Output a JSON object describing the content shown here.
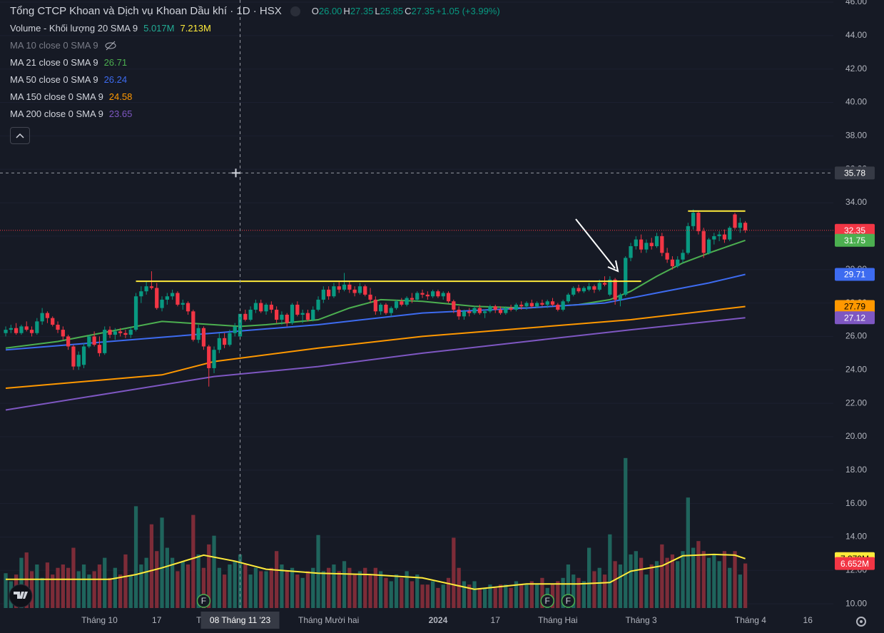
{
  "chart_data": {
    "type": "candlestick",
    "title": "Tổng CTCP Khoan và Dịch vụ Khoan Dầu khí · 1D · HSX",
    "ohlc_legend": [
      {
        "key": "O",
        "value": "26.00"
      },
      {
        "key": "H",
        "value": "27.35"
      },
      {
        "key": "L",
        "value": "25.85"
      },
      {
        "key": "C",
        "value": "27.35"
      }
    ],
    "change": "+1.05 (+3.99%)",
    "up_color": "#089981",
    "down_color": "#f23645",
    "volume_up_color": "#1f645c",
    "volume_down_color": "#7d2c38",
    "xlim": [
      -1.1,
      158.9
    ],
    "ylim": [
      9.75,
      46.13
    ],
    "y2lim": [
      0,
      90.8
    ],
    "grid": true,
    "yticks": [
      {
        "value": 10,
        "label": "10.00"
      },
      {
        "value": 12,
        "label": "12.00"
      },
      {
        "value": 14,
        "label": "14.00"
      },
      {
        "value": 16,
        "label": "16.00"
      },
      {
        "value": 18,
        "label": "18.00"
      },
      {
        "value": 20,
        "label": "20.00"
      },
      {
        "value": 22,
        "label": "22.00"
      },
      {
        "value": 24,
        "label": "24.00"
      },
      {
        "value": 26,
        "label": "26.00"
      },
      {
        "value": 28,
        "label": "28.00"
      },
      {
        "value": 30,
        "label": "30.00"
      },
      {
        "value": 32,
        "label": "32.00"
      },
      {
        "value": 34,
        "label": "34.00"
      },
      {
        "value": 36,
        "label": "36.00"
      },
      {
        "value": 38,
        "label": "38.00"
      },
      {
        "value": 40,
        "label": "40.00"
      },
      {
        "value": 42,
        "label": "42.00"
      },
      {
        "value": 44,
        "label": "44.00"
      },
      {
        "value": 46,
        "label": "46.00"
      }
    ],
    "xticks": [
      {
        "value": 18,
        "label": "Tháng 10"
      },
      {
        "value": 29,
        "label": "17"
      },
      {
        "value": 40,
        "label": "Tháng 11"
      },
      {
        "value": 62,
        "label": "Tháng Mười hai"
      },
      {
        "value": 83,
        "label": "2024"
      },
      {
        "value": 94,
        "label": "17"
      },
      {
        "value": 106,
        "label": "Tháng Hai"
      },
      {
        "value": 122,
        "label": "Tháng 3"
      },
      {
        "value": 143,
        "label": "Tháng 4"
      },
      {
        "value": 154,
        "label": "16"
      }
    ],
    "candles": [
      [
        26.2,
        26.6,
        26.0,
        26.4
      ],
      [
        26.4,
        26.7,
        26.2,
        26.5
      ],
      [
        26.5,
        26.8,
        26.1,
        26.2
      ],
      [
        26.2,
        26.7,
        26.1,
        26.6
      ],
      [
        26.6,
        26.9,
        26.3,
        26.4
      ],
      [
        26.4,
        26.6,
        26.0,
        26.2
      ],
      [
        26.2,
        27.1,
        26.1,
        26.9
      ],
      [
        26.9,
        27.7,
        26.7,
        27.4
      ],
      [
        27.4,
        27.5,
        26.8,
        27.1
      ],
      [
        27.1,
        27.2,
        26.6,
        26.7
      ],
      [
        26.7,
        26.9,
        26.2,
        26.4
      ],
      [
        26.4,
        26.6,
        25.8,
        26.0
      ],
      [
        26.0,
        26.1,
        25.2,
        25.4
      ],
      [
        25.4,
        25.5,
        24.0,
        24.2
      ],
      [
        24.2,
        25.1,
        24.0,
        24.9
      ],
      [
        24.3,
        25.6,
        24.1,
        25.4
      ],
      [
        25.4,
        26.1,
        25.3,
        26.0
      ],
      [
        26.0,
        26.3,
        25.4,
        25.5
      ],
      [
        25.5,
        26.0,
        24.8,
        25.0
      ],
      [
        25.0,
        26.6,
        24.9,
        26.4
      ],
      [
        26.4,
        26.6,
        25.9,
        26.1
      ],
      [
        26.1,
        26.5,
        25.8,
        26.3
      ],
      [
        26.3,
        26.5,
        26.0,
        26.2
      ],
      [
        26.2,
        26.4,
        25.9,
        26.1
      ],
      [
        26.1,
        26.6,
        25.9,
        26.4
      ],
      [
        26.4,
        28.6,
        26.3,
        28.4
      ],
      [
        28.4,
        29.0,
        28.0,
        28.7
      ],
      [
        28.7,
        29.3,
        28.5,
        29.0
      ],
      [
        29.0,
        29.9,
        28.8,
        28.9
      ],
      [
        28.9,
        29.2,
        27.6,
        27.7
      ],
      [
        27.7,
        28.4,
        27.5,
        28.2
      ],
      [
        28.2,
        28.6,
        27.9,
        28.4
      ],
      [
        28.4,
        28.8,
        28.2,
        28.6
      ],
      [
        28.6,
        28.7,
        27.8,
        27.9
      ],
      [
        27.9,
        28.2,
        27.6,
        28.0
      ],
      [
        28.0,
        28.1,
        27.3,
        27.5
      ],
      [
        27.5,
        27.6,
        25.7,
        25.8
      ],
      [
        25.8,
        26.7,
        25.6,
        26.5
      ],
      [
        26.5,
        26.6,
        25.2,
        25.4
      ],
      [
        25.4,
        25.5,
        23.0,
        24.1
      ],
      [
        24.1,
        25.4,
        23.8,
        25.2
      ],
      [
        25.2,
        26.2,
        25.0,
        25.9
      ],
      [
        25.9,
        26.2,
        25.3,
        25.5
      ],
      [
        25.5,
        26.4,
        25.4,
        26.2
      ],
      [
        26.2,
        26.8,
        26.0,
        26.6
      ],
      [
        26.0,
        27.35,
        25.85,
        27.35
      ],
      [
        27.35,
        27.6,
        26.9,
        27.0
      ],
      [
        27.0,
        27.8,
        26.9,
        27.6
      ],
      [
        27.6,
        28.2,
        27.4,
        28.0
      ],
      [
        28.0,
        28.2,
        27.4,
        27.5
      ],
      [
        27.5,
        28.0,
        27.3,
        27.9
      ],
      [
        27.9,
        28.1,
        27.4,
        27.6
      ],
      [
        27.6,
        27.8,
        26.8,
        27.0
      ],
      [
        27.0,
        27.5,
        26.7,
        27.3
      ],
      [
        27.3,
        27.4,
        26.6,
        26.8
      ],
      [
        26.8,
        28.0,
        26.7,
        27.9
      ],
      [
        27.9,
        28.1,
        27.2,
        27.3
      ],
      [
        27.3,
        27.6,
        26.8,
        27.4
      ],
      [
        27.4,
        27.6,
        26.9,
        27.0
      ],
      [
        27.0,
        27.8,
        26.9,
        27.6
      ],
      [
        27.6,
        28.4,
        27.5,
        28.2
      ],
      [
        28.2,
        29.0,
        28.0,
        28.8
      ],
      [
        28.8,
        29.0,
        28.2,
        28.4
      ],
      [
        28.4,
        29.2,
        28.3,
        29.0
      ],
      [
        29.0,
        29.3,
        28.6,
        28.8
      ],
      [
        28.8,
        29.8,
        28.7,
        29.1
      ],
      [
        29.1,
        29.3,
        28.6,
        28.8
      ],
      [
        28.8,
        29.0,
        28.4,
        28.6
      ],
      [
        28.6,
        29.2,
        28.5,
        29.0
      ],
      [
        29.0,
        29.1,
        28.4,
        28.5
      ],
      [
        28.5,
        28.9,
        28.0,
        28.2
      ],
      [
        28.2,
        28.4,
        27.3,
        27.5
      ],
      [
        27.5,
        28.0,
        27.3,
        27.9
      ],
      [
        27.9,
        28.0,
        27.3,
        27.4
      ],
      [
        27.4,
        27.8,
        27.2,
        27.7
      ],
      [
        27.7,
        28.2,
        27.6,
        28.1
      ],
      [
        28.1,
        28.3,
        27.8,
        27.9
      ],
      [
        27.9,
        28.4,
        27.8,
        28.3
      ],
      [
        28.3,
        28.6,
        28.0,
        28.2
      ],
      [
        28.2,
        28.7,
        28.1,
        28.6
      ],
      [
        28.6,
        28.8,
        28.3,
        28.5
      ],
      [
        28.5,
        28.7,
        28.2,
        28.4
      ],
      [
        28.4,
        28.8,
        28.3,
        28.7
      ],
      [
        28.7,
        28.8,
        28.3,
        28.4
      ],
      [
        28.4,
        28.7,
        28.2,
        28.6
      ],
      [
        28.6,
        28.7,
        28.0,
        28.1
      ],
      [
        28.1,
        28.2,
        27.4,
        27.6
      ],
      [
        27.6,
        27.8,
        27.0,
        27.2
      ],
      [
        27.2,
        27.6,
        27.0,
        27.5
      ],
      [
        27.5,
        27.7,
        27.2,
        27.4
      ],
      [
        27.4,
        27.8,
        27.3,
        27.7
      ],
      [
        27.7,
        27.9,
        27.3,
        27.4
      ],
      [
        27.4,
        27.6,
        27.1,
        27.5
      ],
      [
        27.5,
        27.9,
        27.4,
        27.8
      ],
      [
        27.8,
        27.9,
        27.4,
        27.6
      ],
      [
        27.6,
        27.8,
        27.3,
        27.4
      ],
      [
        27.4,
        27.8,
        27.3,
        27.7
      ],
      [
        27.7,
        27.9,
        27.5,
        27.6
      ],
      [
        27.6,
        28.0,
        27.5,
        27.9
      ],
      [
        27.9,
        28.1,
        27.6,
        27.8
      ],
      [
        27.8,
        28.1,
        27.6,
        28.0
      ],
      [
        28.0,
        28.2,
        27.7,
        27.8
      ],
      [
        27.8,
        28.1,
        27.7,
        28.0
      ],
      [
        28.0,
        28.2,
        27.8,
        27.9
      ],
      [
        27.9,
        28.2,
        27.7,
        28.1
      ],
      [
        28.1,
        28.3,
        27.8,
        27.9
      ],
      [
        27.9,
        28.0,
        27.5,
        27.6
      ],
      [
        27.6,
        28.2,
        27.5,
        28.1
      ],
      [
        28.1,
        28.6,
        28.0,
        28.5
      ],
      [
        28.5,
        29.0,
        28.4,
        28.9
      ],
      [
        28.9,
        29.1,
        28.6,
        28.7
      ],
      [
        28.7,
        29.0,
        28.6,
        28.9
      ],
      [
        28.8,
        29.2,
        28.7,
        29.0
      ],
      [
        29.0,
        29.1,
        28.6,
        28.8
      ],
      [
        28.8,
        29.4,
        28.7,
        29.2
      ],
      [
        29.2,
        29.6,
        29.0,
        29.1
      ],
      [
        28.5,
        29.6,
        28.4,
        29.4
      ],
      [
        29.4,
        29.5,
        27.9,
        28.2
      ],
      [
        28.2,
        28.6,
        27.8,
        28.5
      ],
      [
        28.5,
        30.8,
        28.4,
        30.7
      ],
      [
        30.7,
        31.6,
        30.5,
        31.4
      ],
      [
        31.4,
        32.0,
        31.2,
        31.8
      ],
      [
        31.8,
        32.1,
        31.0,
        31.2
      ],
      [
        31.2,
        31.8,
        31.0,
        31.6
      ],
      [
        31.6,
        31.9,
        31.2,
        31.4
      ],
      [
        31.4,
        32.2,
        31.3,
        32.0
      ],
      [
        32.0,
        32.2,
        30.8,
        31.0
      ],
      [
        31.0,
        31.3,
        30.4,
        30.6
      ],
      [
        30.6,
        30.8,
        30.0,
        30.2
      ],
      [
        30.2,
        30.8,
        30.1,
        30.6
      ],
      [
        30.6,
        31.2,
        30.4,
        31.0
      ],
      [
        31.0,
        32.8,
        30.9,
        32.6
      ],
      [
        32.6,
        33.6,
        32.4,
        33.4
      ],
      [
        33.4,
        33.5,
        32.1,
        32.3
      ],
      [
        32.3,
        32.5,
        30.7,
        31.0
      ],
      [
        31.0,
        31.9,
        30.9,
        31.8
      ],
      [
        31.8,
        32.2,
        31.5,
        32.0
      ],
      [
        32.0,
        32.3,
        31.7,
        32.1
      ],
      [
        32.1,
        32.4,
        31.6,
        31.8
      ],
      [
        31.8,
        32.6,
        31.7,
        32.5
      ],
      [
        33.3,
        33.4,
        32.4,
        32.5
      ],
      [
        32.5,
        33.1,
        32.2,
        32.8
      ],
      [
        32.8,
        32.9,
        32.2,
        32.35
      ]
    ],
    "volume": [
      5.2,
      4.0,
      5.0,
      7.5,
      8.3,
      5.5,
      6.5,
      4.5,
      6.8,
      5.0,
      6.0,
      6.5,
      6.0,
      9.0,
      5.5,
      6.5,
      5.0,
      5.5,
      6.5,
      7.5,
      4.5,
      6.0,
      5.0,
      8.0,
      4.8,
      15.2,
      6.5,
      7.5,
      12.5,
      8.5,
      13.5,
      9.0,
      7.5,
      5.5,
      7.0,
      6.5,
      13.9,
      8.0,
      6.0,
      9.5,
      10.8,
      6.0,
      5.0,
      6.5,
      7.0,
      8.0,
      6.5,
      5.0,
      6.0,
      5.5,
      5.5,
      6.0,
      8.5,
      6.5,
      5.5,
      6.0,
      5.0,
      4.5,
      5.5,
      6.0,
      10.9,
      5.5,
      6.0,
      6.5,
      5.5,
      7.0,
      6.0,
      5.0,
      5.5,
      6.0,
      5.0,
      6.0,
      5.5,
      4.5,
      4.0,
      5.0,
      4.5,
      5.5,
      4.0,
      5.0,
      3.5,
      3.5,
      4.0,
      3.0,
      3.5,
      4.5,
      10.5,
      6.0,
      4.0,
      3.5,
      4.0,
      3.0,
      3.0,
      3.5,
      3.0,
      3.5,
      3.5,
      3.0,
      4.0,
      3.5,
      3.5,
      4.0,
      3.5,
      4.5,
      3.0,
      3.5,
      4.0,
      4.5,
      6.5,
      5.0,
      4.5,
      4.0,
      9.0,
      5.5,
      6.0,
      5.0,
      11.0,
      7.0,
      6.5,
      22.4,
      8.0,
      8.5,
      7.5,
      5.0,
      6.5,
      7.0,
      9.5,
      7.5,
      8.0,
      7.0,
      8.5,
      16.5,
      9.0,
      10.0,
      8.5,
      7.5,
      8.0,
      7.0,
      8.5,
      6.0,
      8.5,
      5.0,
      6.652
    ],
    "indicators": [
      {
        "name": "Volume - Khối lượng 20 SMA 9",
        "readings": [
          "5.017M",
          "7.213M"
        ],
        "reading_colors": [
          "#22ab94",
          "#ffeb3b"
        ],
        "color": "#ffeb3b",
        "axis": "y2",
        "x": [
          0,
          10,
          20,
          25,
          30,
          38,
          44,
          50,
          60,
          70,
          80,
          90,
          100,
          110,
          116,
          120,
          126,
          130,
          136,
          140,
          142
        ],
        "values": [
          4.3,
          4.3,
          4.3,
          5.0,
          6.0,
          7.9,
          7.0,
          5.8,
          5.2,
          5.0,
          4.5,
          2.8,
          3.6,
          3.6,
          3.8,
          5.5,
          6.3,
          7.8,
          8.0,
          7.9,
          7.38
        ]
      },
      {
        "name": "MA 10 close 0 SMA 9",
        "hidden": true
      },
      {
        "name": "MA 21 close 0 SMA 9",
        "value": 26.71,
        "color": "#4caf50",
        "x": [
          0,
          10,
          20,
          30,
          40,
          45,
          50,
          60,
          66,
          72,
          80,
          90,
          100,
          110,
          116,
          120,
          125,
          130,
          136,
          142
        ],
        "values": [
          25.3,
          25.7,
          26.3,
          26.9,
          26.7,
          26.6,
          26.7,
          27.0,
          27.7,
          28.2,
          28.1,
          27.8,
          27.7,
          27.9,
          28.2,
          28.7,
          29.6,
          30.4,
          31.1,
          31.75
        ]
      },
      {
        "name": "MA 50 close 0 SMA 9",
        "value": 26.24,
        "color": "#3d6bf0",
        "x": [
          0,
          20,
          40,
          60,
          80,
          100,
          115,
          125,
          135,
          142
        ],
        "values": [
          25.2,
          25.7,
          26.2,
          26.7,
          27.4,
          27.7,
          28.0,
          28.6,
          29.2,
          29.71
        ]
      },
      {
        "name": "MA 150 close 0 SMA 9",
        "value": 24.58,
        "color": "#ff9800",
        "x": [
          0,
          30,
          40,
          60,
          80,
          100,
          120,
          142
        ],
        "values": [
          22.9,
          23.7,
          24.5,
          25.3,
          26.0,
          26.5,
          27.0,
          27.79
        ]
      },
      {
        "name": "MA 200 close 0 SMA 9",
        "value": 23.65,
        "color": "#7e57c2",
        "x": [
          0,
          20,
          40,
          60,
          80,
          100,
          120,
          142
        ],
        "values": [
          21.6,
          22.6,
          23.6,
          24.2,
          25.0,
          25.7,
          26.4,
          27.12
        ]
      }
    ],
    "levels": [
      {
        "value": 29.3,
        "from": 25,
        "to": 122,
        "color": "#ffeb3b"
      },
      {
        "value": 33.5,
        "from": 131,
        "to": 142,
        "color": "#ffeb3b"
      }
    ],
    "events": [
      {
        "index": 38,
        "label": "F"
      },
      {
        "index": 104,
        "label": "F"
      },
      {
        "index": 108,
        "label": "F"
      }
    ],
    "crosshair": {
      "index": 45,
      "value": 35.78,
      "date_label": "08 Tháng 11 '23"
    },
    "price_labels": [
      {
        "value": 32.35,
        "color": "#f23645",
        "text_color": "#ffffff"
      },
      {
        "value": 31.75,
        "color": "#4caf50",
        "text_color": "#ffffff"
      },
      {
        "value": 29.71,
        "color": "#3d6bf0",
        "text_color": "#ffffff"
      },
      {
        "value": 27.79,
        "color": "#ff9800",
        "text_color": "#000000"
      },
      {
        "value": 27.12,
        "color": "#7e57c2",
        "text_color": "#ffffff"
      },
      {
        "value": 7.379,
        "label": "7.379M",
        "axis": "y2",
        "color": "#ffeb3b",
        "text_color": "#000000"
      },
      {
        "value": 6.652,
        "label": "6.652M",
        "axis": "y2",
        "color": "#f23645",
        "text_color": "#ffffff"
      }
    ]
  }
}
